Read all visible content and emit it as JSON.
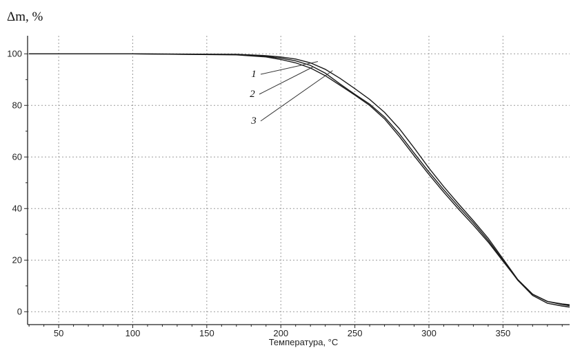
{
  "chart_data": {
    "type": "line",
    "ylabel": "Δm, %",
    "xlabel": "Температура, °C",
    "xlim": [
      29,
      395
    ],
    "ylim": [
      -5,
      107
    ],
    "xticks": [
      50,
      100,
      150,
      200,
      250,
      300,
      350
    ],
    "yticks": [
      0,
      20,
      40,
      60,
      80,
      100
    ],
    "grid": true,
    "series": [
      {
        "name": "1",
        "x": [
          30,
          100,
          170,
          190,
          200,
          210,
          220,
          230,
          240,
          250,
          260,
          270,
          280,
          290,
          300,
          310,
          320,
          330,
          340,
          350,
          360,
          370,
          380,
          390,
          395
        ],
        "y": [
          100,
          100,
          99.8,
          99.3,
          98.8,
          98,
          96.5,
          94,
          90.5,
          86.5,
          82.3,
          77.3,
          71,
          63.5,
          55.7,
          48.5,
          41.8,
          35.3,
          28.5,
          20.5,
          12.5,
          6.8,
          4,
          3,
          2.7
        ]
      },
      {
        "name": "2",
        "x": [
          30,
          100,
          170,
          190,
          200,
          210,
          220,
          230,
          240,
          250,
          260,
          270,
          280,
          290,
          300,
          310,
          320,
          330,
          340,
          350,
          360,
          370,
          380,
          390,
          395
        ],
        "y": [
          100,
          100,
          99.7,
          99,
          98.3,
          97.3,
          95.5,
          92.5,
          88.3,
          84.3,
          80.5,
          75.5,
          69,
          61.5,
          54.2,
          47.3,
          40.8,
          34.5,
          27.7,
          20,
          12.2,
          6.3,
          3.3,
          2.2,
          1.8
        ]
      },
      {
        "name": "3",
        "x": [
          30,
          100,
          170,
          190,
          200,
          210,
          220,
          230,
          240,
          250,
          260,
          270,
          280,
          290,
          300,
          310,
          320,
          330,
          340,
          350,
          360,
          370,
          380,
          390,
          395
        ],
        "y": [
          100,
          100,
          99.6,
          98.8,
          97.8,
          96.5,
          94.5,
          91.5,
          87.8,
          84,
          80,
          74.8,
          68,
          60.5,
          53.2,
          46.3,
          39.8,
          33.6,
          27,
          19.6,
          12.3,
          6.8,
          4,
          2.8,
          2.3
        ]
      }
    ],
    "annotations": [
      {
        "text": "1",
        "points_to": [
          225,
          97
        ]
      },
      {
        "text": "2",
        "points_to": [
          222,
          95
        ]
      },
      {
        "text": "3",
        "points_to": [
          235,
          93.5
        ]
      }
    ]
  }
}
